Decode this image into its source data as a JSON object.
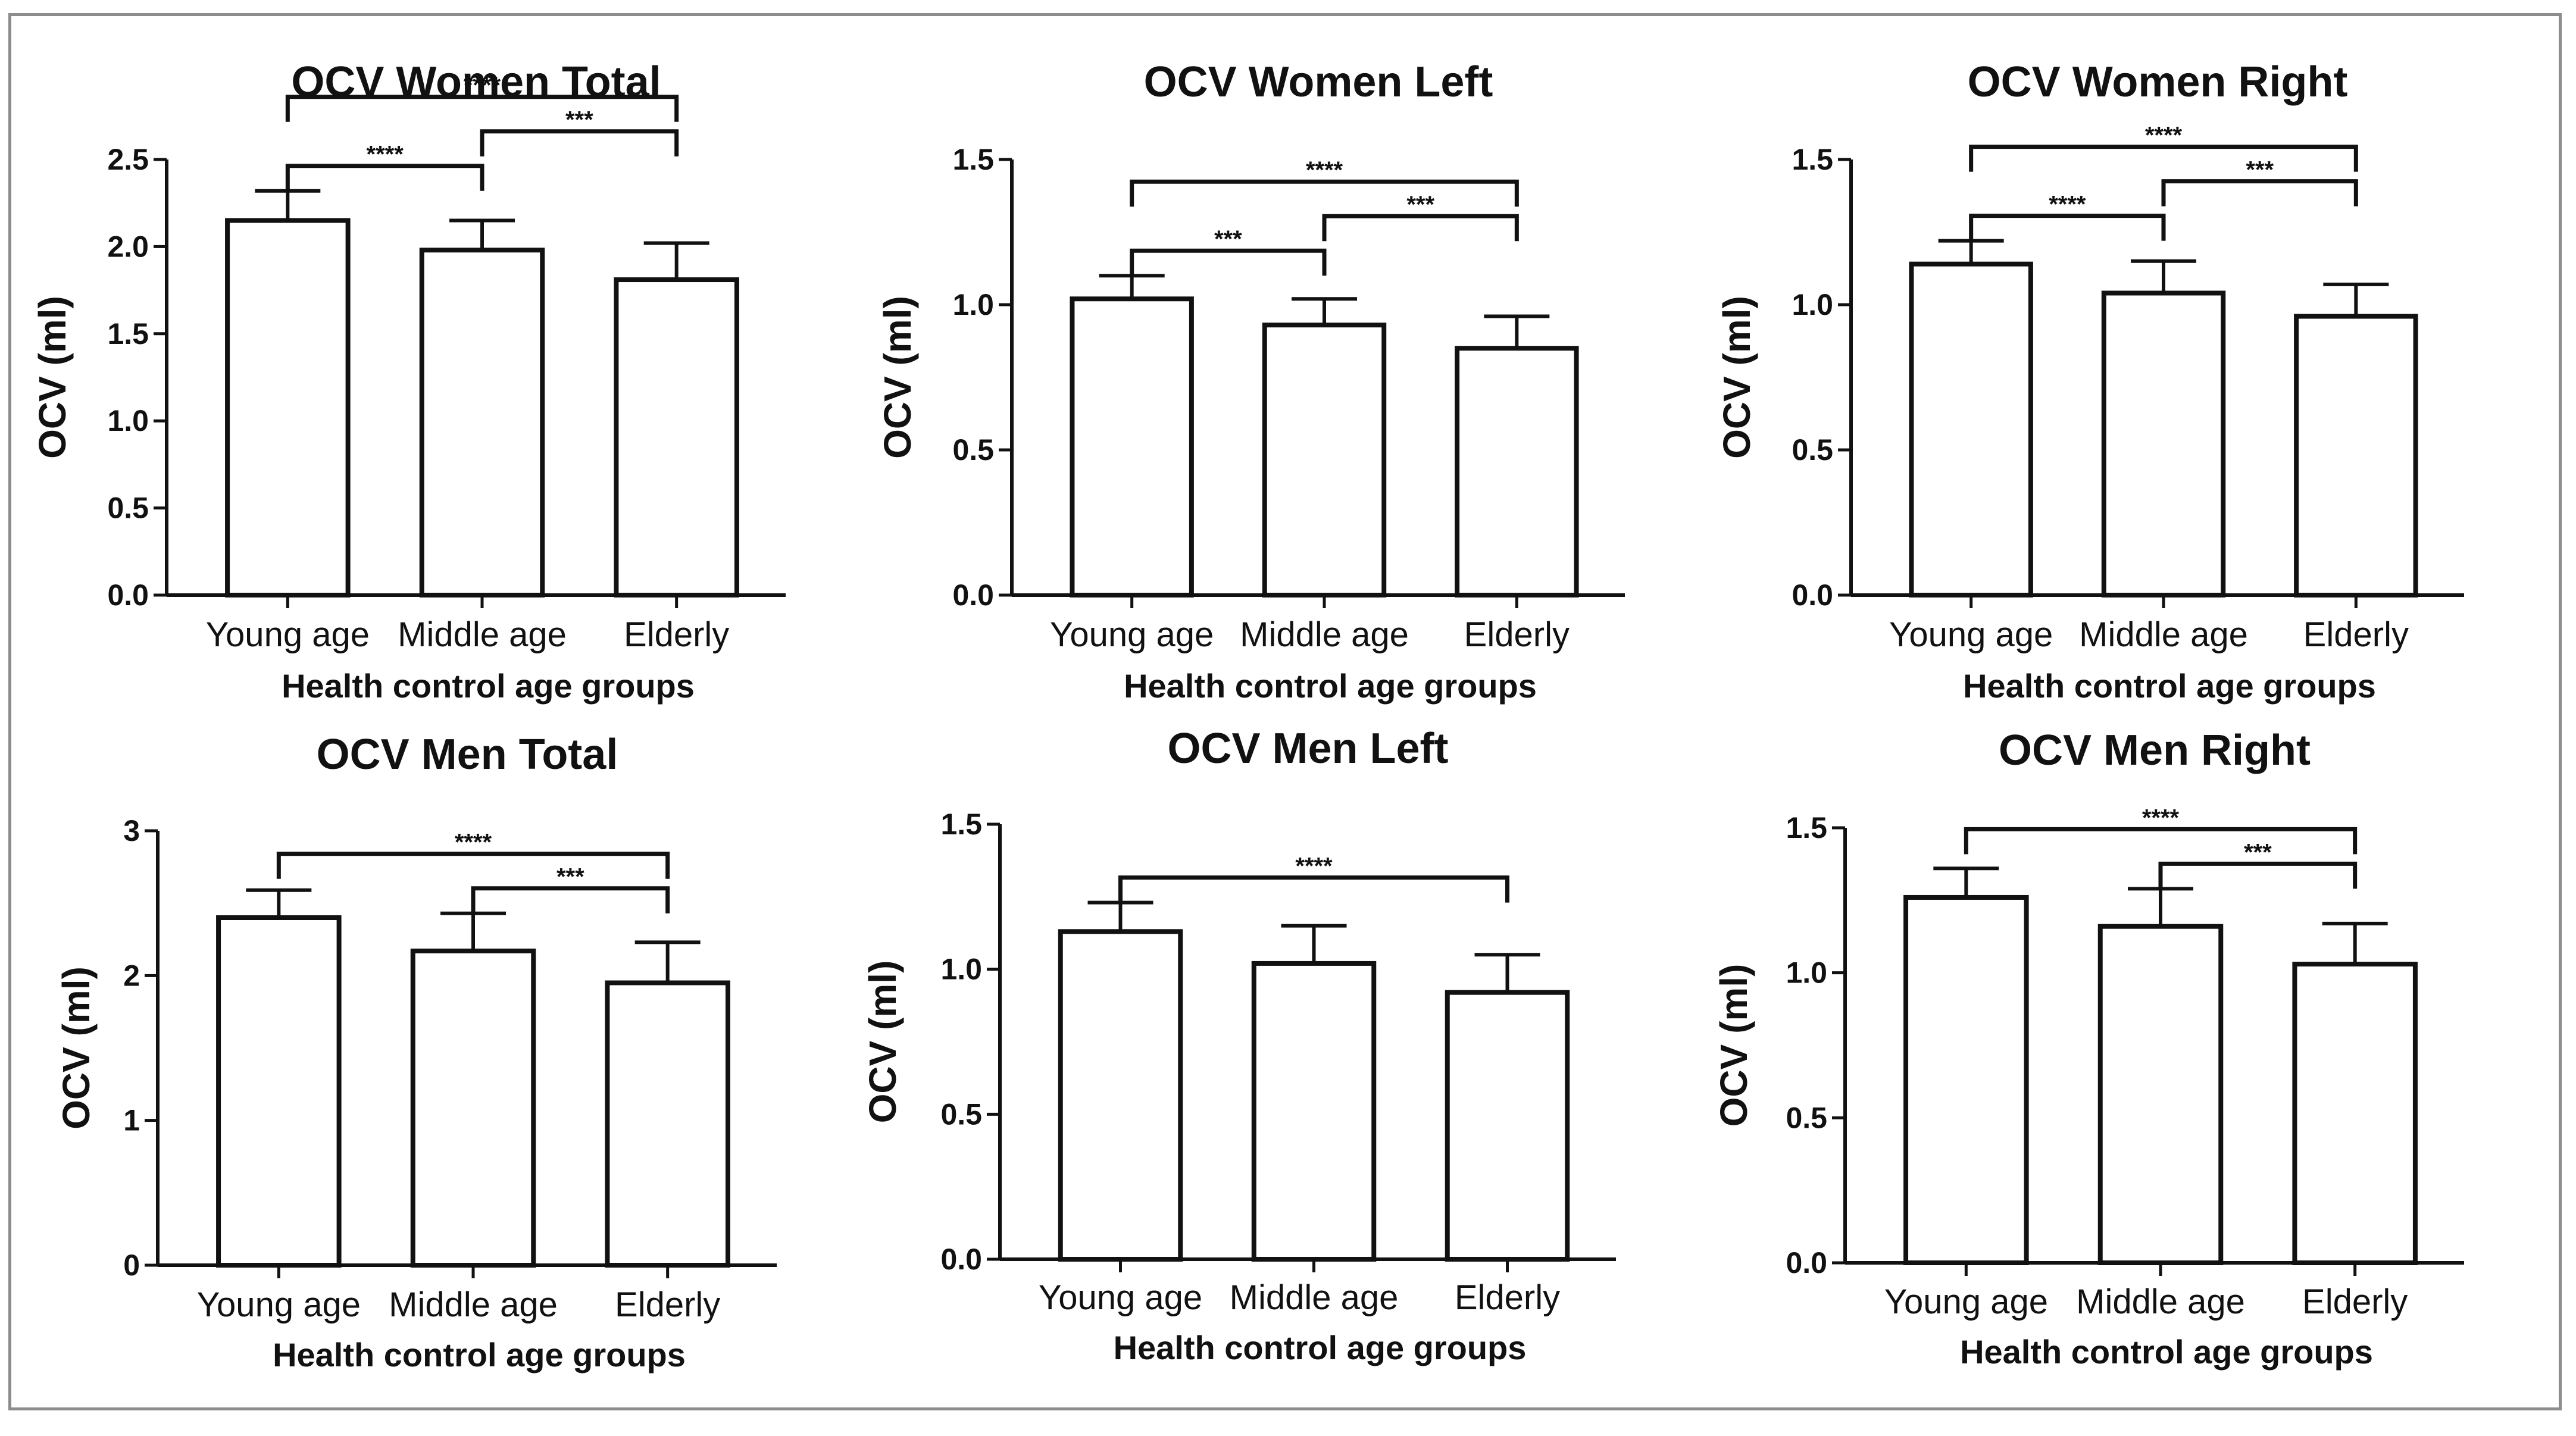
{
  "chart_data": [
    {
      "type": "bar",
      "title": "OCV Women Total",
      "xlabel": "Health control age groups",
      "ylabel": "OCV (ml)",
      "categories": [
        "Young age",
        "Middle age",
        "Elderly"
      ],
      "values": [
        2.15,
        1.98,
        1.81
      ],
      "errors": [
        0.17,
        0.17,
        0.21
      ],
      "ylim": [
        0,
        2.5
      ],
      "yticks": [
        "0.0",
        "0.5",
        "1.0",
        "1.5",
        "2.0",
        "2.5"
      ],
      "significance": [
        {
          "from": 0,
          "to": 2,
          "label": "****"
        },
        {
          "from": 0,
          "to": 1,
          "label": "****"
        },
        {
          "from": 1,
          "to": 2,
          "label": "***"
        }
      ]
    },
    {
      "type": "bar",
      "title": "OCV Women Left",
      "xlabel": "Health control age groups",
      "ylabel": "OCV (ml)",
      "categories": [
        "Young age",
        "Middle age",
        "Elderly"
      ],
      "values": [
        1.02,
        0.93,
        0.85
      ],
      "errors": [
        0.08,
        0.09,
        0.11
      ],
      "ylim": [
        0,
        1.5
      ],
      "yticks": [
        "0.0",
        "0.5",
        "1.0",
        "1.5"
      ],
      "significance": [
        {
          "from": 0,
          "to": 2,
          "label": "****"
        },
        {
          "from": 0,
          "to": 1,
          "label": "***"
        },
        {
          "from": 1,
          "to": 2,
          "label": "***"
        }
      ]
    },
    {
      "type": "bar",
      "title": "OCV Women Right",
      "xlabel": "Health control age groups",
      "ylabel": "OCV (ml)",
      "categories": [
        "Young age",
        "Middle age",
        "Elderly"
      ],
      "values": [
        1.14,
        1.04,
        0.96
      ],
      "errors": [
        0.08,
        0.11,
        0.11
      ],
      "ylim": [
        0,
        1.5
      ],
      "yticks": [
        "0.0",
        "0.5",
        "1.0",
        "1.5"
      ],
      "significance": [
        {
          "from": 0,
          "to": 2,
          "label": "****"
        },
        {
          "from": 0,
          "to": 1,
          "label": "****"
        },
        {
          "from": 1,
          "to": 2,
          "label": "***"
        }
      ]
    },
    {
      "type": "bar",
      "title": "OCV Men Total",
      "xlabel": "Health control age groups",
      "ylabel": "OCV (ml)",
      "categories": [
        "Young age",
        "Middle age",
        "Elderly"
      ],
      "values": [
        2.4,
        2.17,
        1.95
      ],
      "errors": [
        0.19,
        0.26,
        0.28
      ],
      "ylim": [
        0,
        3
      ],
      "yticks": [
        "0",
        "1",
        "2",
        "3"
      ],
      "significance": [
        {
          "from": 0,
          "to": 2,
          "label": "****"
        },
        {
          "from": 1,
          "to": 2,
          "label": "***"
        }
      ]
    },
    {
      "type": "bar",
      "title": "OCV Men Left",
      "xlabel": "Health control age groups",
      "ylabel": "OCV (ml)",
      "categories": [
        "Young age",
        "Middle age",
        "Elderly"
      ],
      "values": [
        1.13,
        1.02,
        0.92
      ],
      "errors": [
        0.1,
        0.13,
        0.13
      ],
      "ylim": [
        0,
        1.5
      ],
      "yticks": [
        "0.0",
        "0.5",
        "1.0",
        "1.5"
      ],
      "significance": [
        {
          "from": 0,
          "to": 2,
          "label": "****"
        }
      ]
    },
    {
      "type": "bar",
      "title": "OCV Men Right",
      "xlabel": "Health control age groups",
      "ylabel": "OCV (ml)",
      "categories": [
        "Young age",
        "Middle age",
        "Elderly"
      ],
      "values": [
        1.26,
        1.16,
        1.03
      ],
      "errors": [
        0.1,
        0.13,
        0.14
      ],
      "ylim": [
        0,
        1.5
      ],
      "yticks": [
        "0.0",
        "0.5",
        "1.0",
        "1.5"
      ],
      "significance": [
        {
          "from": 0,
          "to": 2,
          "label": "****"
        },
        {
          "from": 1,
          "to": 2,
          "label": "***"
        }
      ]
    }
  ],
  "colors": {
    "bar_fill": "#ffffff",
    "ink": "#111111",
    "frame": "#8c8c8c"
  }
}
